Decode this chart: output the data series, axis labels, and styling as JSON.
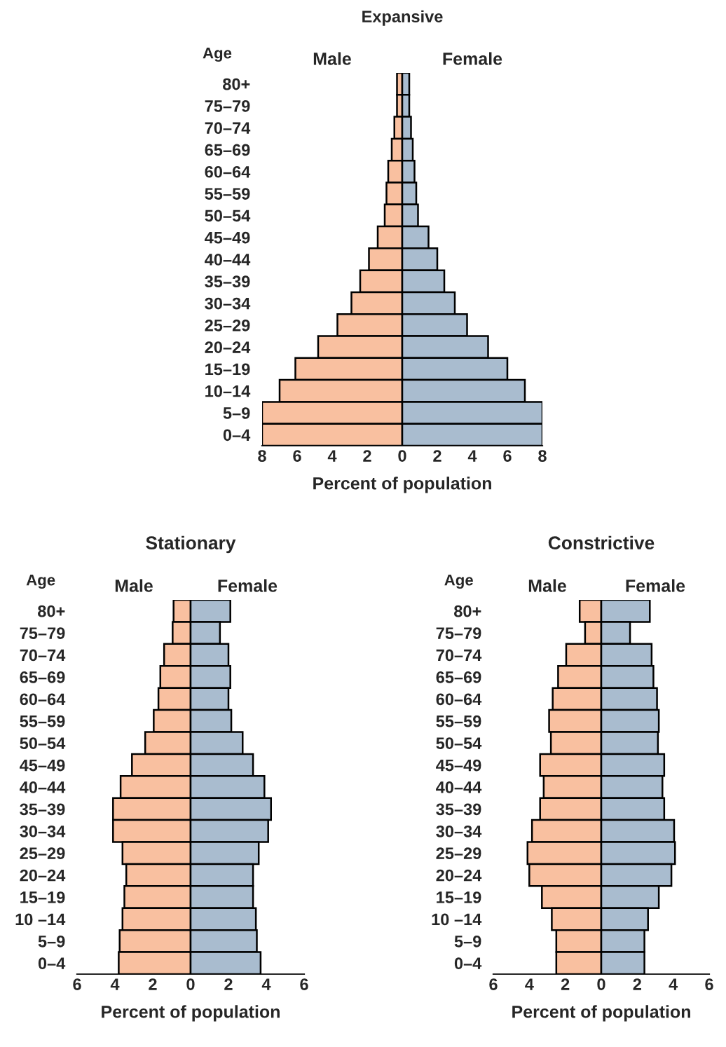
{
  "chart_data": [
    {
      "type": "bar",
      "orientation": "horizontal",
      "stacked": true,
      "title": "Expansive",
      "xlabel": "Percent of population",
      "ylabel": "Age",
      "categories": [
        "80+",
        "75–79",
        "70–74",
        "65–69",
        "60–64",
        "55–59",
        "50–54",
        "45–49",
        "40–44",
        "35–39",
        "30–34",
        "25–29",
        "20–24",
        "15–19",
        "10–14",
        "5–9",
        "0–4"
      ],
      "series": [
        {
          "name": "Male",
          "color": "#f9c0a0",
          "values": [
            -0.3,
            -0.3,
            -0.45,
            -0.6,
            -0.8,
            -0.9,
            -1.0,
            -1.4,
            -1.9,
            -2.4,
            -2.9,
            -3.7,
            -4.8,
            -6.1,
            -7.0,
            -8.0,
            -8.0
          ]
        },
        {
          "name": "Female",
          "color": "#a9bccf",
          "values": [
            0.4,
            0.4,
            0.5,
            0.6,
            0.7,
            0.8,
            0.9,
            1.5,
            2.0,
            2.4,
            3.0,
            3.7,
            4.9,
            6.0,
            7.0,
            8.0,
            8.0
          ]
        }
      ],
      "xlim": [
        -8,
        8
      ],
      "xticks": [
        {
          "value": -8,
          "label": "8"
        },
        {
          "value": -6,
          "label": "6"
        },
        {
          "value": -4,
          "label": "4"
        },
        {
          "value": -2,
          "label": "2"
        },
        0,
        2,
        4,
        6,
        8
      ]
    },
    {
      "type": "bar",
      "orientation": "horizontal",
      "stacked": true,
      "title": "Stationary",
      "xlabel": "Percent of population",
      "ylabel": "Age",
      "categories": [
        "80+",
        "75–79",
        "70–74",
        "65–69",
        "60–64",
        "55–59",
        "50–54",
        "45–49",
        "40–44",
        "35–39",
        "30–34",
        "25–29",
        "20–24",
        "15–19",
        "10 –14",
        "5–9",
        "0–4"
      ],
      "series": [
        {
          "name": "Male",
          "color": "#f9c0a0",
          "values": [
            -0.9,
            -0.95,
            -1.4,
            -1.6,
            -1.7,
            -1.95,
            -2.4,
            -3.1,
            -3.7,
            -4.1,
            -4.1,
            -3.6,
            -3.4,
            -3.5,
            -3.6,
            -3.75,
            -3.8
          ]
        },
        {
          "name": "Female",
          "color": "#a9bccf",
          "values": [
            2.1,
            1.55,
            2.0,
            2.1,
            2.0,
            2.15,
            2.75,
            3.3,
            3.9,
            4.25,
            4.1,
            3.6,
            3.3,
            3.3,
            3.45,
            3.5,
            3.7
          ]
        }
      ],
      "xlim": [
        -6,
        6
      ],
      "xticks": [
        {
          "value": -6,
          "label": "6"
        },
        {
          "value": -4,
          "label": "4"
        },
        {
          "value": -2,
          "label": "2"
        },
        0,
        2,
        4,
        6
      ]
    },
    {
      "type": "bar",
      "orientation": "horizontal",
      "stacked": true,
      "title": "Constrictive",
      "xlabel": "Percent of population",
      "ylabel": "Age",
      "categories": [
        "80+",
        "75–79",
        "70–74",
        "65–69",
        "60–64",
        "55–59",
        "50–54",
        "45–49",
        "40–44",
        "35–39",
        "30–34",
        "25–29",
        "20–24",
        "15–19",
        "10 –14",
        "5–9",
        "0–4"
      ],
      "series": [
        {
          "name": "Male",
          "color": "#f9c0a0",
          "values": [
            -1.2,
            -0.9,
            -1.95,
            -2.4,
            -2.7,
            -2.9,
            -2.8,
            -3.4,
            -3.2,
            -3.4,
            -3.85,
            -4.1,
            -4.0,
            -3.3,
            -2.75,
            -2.5,
            -2.5
          ]
        },
        {
          "name": "Female",
          "color": "#a9bccf",
          "values": [
            2.7,
            1.6,
            2.8,
            2.9,
            3.1,
            3.2,
            3.15,
            3.5,
            3.4,
            3.5,
            4.05,
            4.1,
            3.9,
            3.2,
            2.6,
            2.4,
            2.4
          ]
        }
      ],
      "xlim": [
        -6,
        6
      ],
      "xticks": [
        {
          "value": -6,
          "label": "6"
        },
        {
          "value": -4,
          "label": "4"
        },
        {
          "value": -2,
          "label": "2"
        },
        0,
        2,
        4,
        6
      ]
    }
  ]
}
